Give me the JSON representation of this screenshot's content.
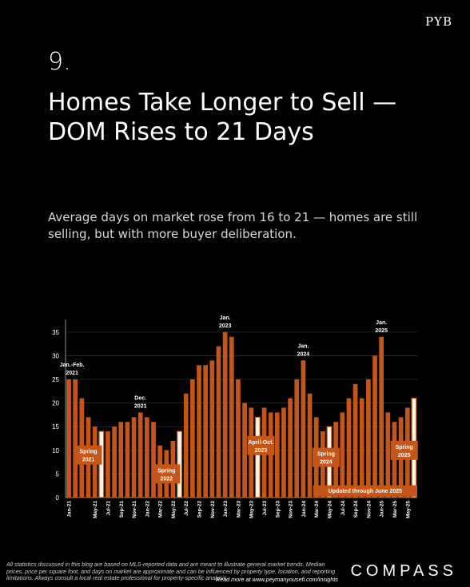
{
  "header": {
    "brand": "PYB"
  },
  "main": {
    "number": "9.",
    "title": "Homes Take Longer to Sell — DOM Rises to 21 Days",
    "subtitle": "Average days on market rose from 16 to 21 — homes are still selling, but with more buyer deliberation."
  },
  "footer": {
    "disclaimer": "All statistics discussed in this blog are based on MLS-reported data and are meant to illustrate general market trends. Median prices, price per square foot, and days on market are approximate and can be influenced by property type, location, and reporting limitations. Always consult a local real estate professional for property-specific analysis.",
    "read_more": "Read more at www.peymanyousefi.com/insights",
    "logo": "COMPASS"
  },
  "chart_data": {
    "type": "bar",
    "ylim": [
      0,
      37
    ],
    "yticks": [
      0,
      5,
      10,
      15,
      20,
      25,
      30,
      35
    ],
    "grid": true,
    "colors": {
      "bar": "#c4561a",
      "highlight": "#fff4e6",
      "label_box": "#c4561a"
    },
    "categories": [
      "Jan-21",
      "Feb-21",
      "Mar-21",
      "Apr-21",
      "May-21",
      "Jun-21",
      "Jul-21",
      "Aug-21",
      "Sep-21",
      "Oct-21",
      "Nov-21",
      "Dec-21",
      "Jan-22",
      "Feb-22",
      "Mar-22",
      "Apr-22",
      "May-22",
      "Jun-22",
      "Jul-22",
      "Aug-22",
      "Sep-22",
      "Oct-22",
      "Nov-22",
      "Dec-22",
      "Jan-23",
      "Feb-23",
      "Mar-23",
      "Apr-23",
      "May-23",
      "Jun-23",
      "Jul-23",
      "Aug-23",
      "Sep-23",
      "Oct-23",
      "Nov-23",
      "Dec-23",
      "Jan-24",
      "Feb-24",
      "Mar-24",
      "Apr-24",
      "May-24",
      "Jun-24",
      "Jul-24",
      "Aug-24",
      "Sep-24",
      "Oct-24",
      "Nov-24",
      "Dec-24",
      "Jan-25",
      "Feb-25",
      "Mar-25",
      "Apr-25",
      "May-25",
      "Jun-25"
    ],
    "tick_labels": [
      "Jan-21",
      "",
      "",
      "",
      "May-21",
      "",
      "Jul-21",
      "",
      "Sep-21",
      "",
      "Nov-21",
      "",
      "Jan-22",
      "",
      "Mar-22",
      "",
      "May-22",
      "",
      "Jul-22",
      "",
      "Sep-22",
      "",
      "Nov-22",
      "",
      "Jan-23",
      "",
      "Mar-23",
      "",
      "May-23",
      "",
      "Jul-23",
      "",
      "Sep-23",
      "",
      "Nov-23",
      "",
      "Jan-24",
      "",
      "Mar-24",
      "",
      "May-24",
      "",
      "Jul-24",
      "",
      "Sep-24",
      "",
      "Nov-24",
      "",
      "Jan-25",
      "",
      "Mar-25",
      "",
      "May-25",
      ""
    ],
    "values": [
      25,
      25,
      21,
      17,
      15,
      14,
      14,
      15,
      16,
      16,
      17,
      18,
      17,
      16,
      11,
      10,
      12,
      14,
      22,
      25,
      28,
      28,
      29,
      32,
      35,
      34,
      25,
      20,
      19,
      17,
      19,
      18,
      18,
      19,
      21,
      25,
      29,
      22,
      17,
      14,
      15,
      16,
      18,
      21,
      24,
      21,
      25,
      30,
      34,
      18,
      16,
      17,
      19,
      21
    ],
    "highlighted": [
      5,
      17,
      29,
      40,
      53
    ],
    "peak_labels": [
      {
        "index": 0.5,
        "lines": [
          "Jan.-Feb.",
          "2021"
        ]
      },
      {
        "index": 11,
        "lines": [
          "Dec.",
          "2021"
        ]
      },
      {
        "index": 24,
        "lines": [
          "Jan.",
          "2023"
        ]
      },
      {
        "index": 36,
        "lines": [
          "Jan.",
          "2024"
        ]
      },
      {
        "index": 48,
        "lines": [
          "Jan.",
          "2025"
        ]
      }
    ],
    "period_labels": [
      {
        "center": 3,
        "value": 9,
        "lines": [
          "Spring",
          "2021"
        ]
      },
      {
        "center": 15,
        "value": 5,
        "lines": [
          "Spring",
          "2022"
        ]
      },
      {
        "center": 29.5,
        "value": 11,
        "lines": [
          "April-Oct.",
          "2023"
        ]
      },
      {
        "center": 39.5,
        "value": 8.5,
        "lines": [
          "Spring",
          "2024"
        ]
      },
      {
        "center": 51.5,
        "value": 10,
        "lines": [
          "Spring",
          "2025"
        ]
      }
    ],
    "annotation": {
      "start": 38,
      "end": 53,
      "text": "Updated through June 2025"
    }
  }
}
